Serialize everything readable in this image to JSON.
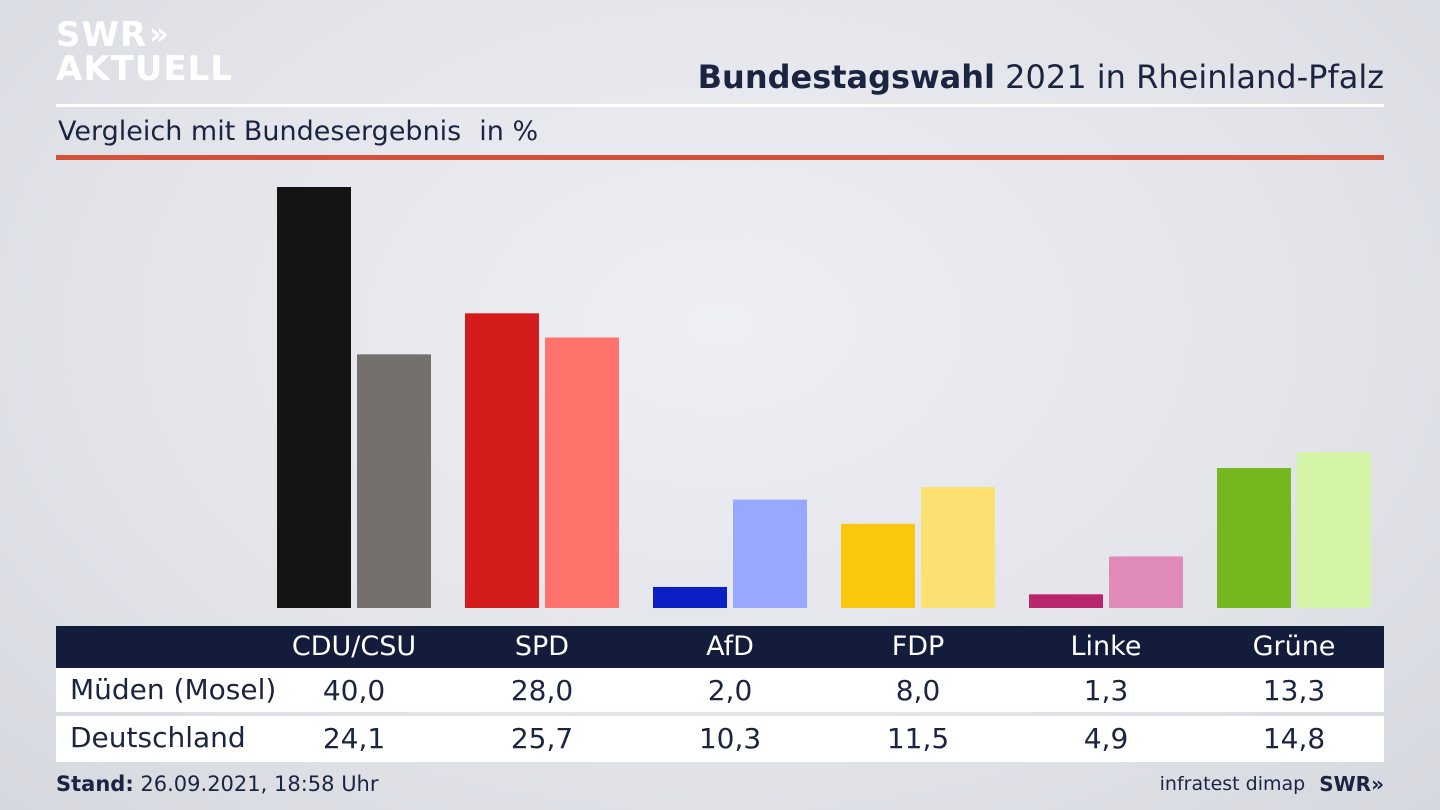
{
  "logo": {
    "line1": "SWR",
    "chevrons": "»",
    "line2": "AKTUELL"
  },
  "header": {
    "title_bold": "Bundestagswahl",
    "title_rest": "2021 in Rheinland-Pfalz"
  },
  "subtitle": {
    "text": "Vergleich mit Bundesergebnis",
    "unit": "in %"
  },
  "chart_data": {
    "type": "bar",
    "categories": [
      "CDU/CSU",
      "SPD",
      "AfD",
      "FDP",
      "Linke",
      "Grüne"
    ],
    "series": [
      {
        "name": "Müden (Mosel)",
        "values": [
          40.0,
          28.0,
          2.0,
          8.0,
          1.3,
          13.3
        ],
        "colors": [
          "#141414",
          "#d41c1c",
          "#0a1fc4",
          "#f9c80e",
          "#b9266e",
          "#74b71e"
        ]
      },
      {
        "name": "Deutschland",
        "values": [
          24.1,
          25.7,
          10.3,
          11.5,
          4.9,
          14.8
        ],
        "colors": [
          "#73706e",
          "#ff736c",
          "#9aa7ff",
          "#fde072",
          "#e08ab8",
          "#d4f5a6"
        ]
      }
    ],
    "ylim": [
      0,
      40
    ],
    "display_values": {
      "row1": [
        "40,0",
        "28,0",
        "2,0",
        "8,0",
        "1,3",
        "13,3"
      ],
      "row2": [
        "24,1",
        "25,7",
        "10,3",
        "11,5",
        "4,9",
        "14,8"
      ]
    }
  },
  "footer": {
    "stand_label": "Stand:",
    "stand_value": "26.09.2021, 18:58 Uhr",
    "source": "infratest dimap",
    "brand": "SWR»"
  }
}
